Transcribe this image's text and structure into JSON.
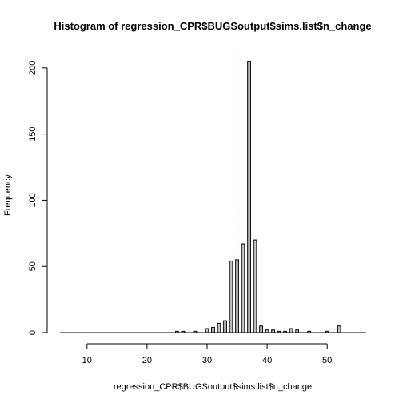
{
  "chart_data": {
    "type": "bar",
    "title": "Histogram of regression_CPR$BUGSoutput$sims.list$n_change",
    "xlabel": "regression_CPR$BUGSoutput$sims.list$n_change",
    "ylabel": "Frequency",
    "xlim": [
      5.5,
      56.5
    ],
    "ylim": [
      0,
      215
    ],
    "x_ticks": [
      10,
      20,
      30,
      40,
      50
    ],
    "y_ticks": [
      0,
      50,
      100,
      150,
      200
    ],
    "grid": false,
    "bar_width": 0.5,
    "bar_color": "#bebebe",
    "bars": [
      {
        "x": 25,
        "y": 1
      },
      {
        "x": 26,
        "y": 1
      },
      {
        "x": 28,
        "y": 1
      },
      {
        "x": 30,
        "y": 3
      },
      {
        "x": 31,
        "y": 4
      },
      {
        "x": 32,
        "y": 7
      },
      {
        "x": 33,
        "y": 9
      },
      {
        "x": 34,
        "y": 54
      },
      {
        "x": 35,
        "y": 55
      },
      {
        "x": 36,
        "y": 67
      },
      {
        "x": 37,
        "y": 205
      },
      {
        "x": 38,
        "y": 70
      },
      {
        "x": 39,
        "y": 5
      },
      {
        "x": 40,
        "y": 2
      },
      {
        "x": 41,
        "y": 2
      },
      {
        "x": 42,
        "y": 1
      },
      {
        "x": 43,
        "y": 1
      },
      {
        "x": 44,
        "y": 3
      },
      {
        "x": 45,
        "y": 2
      },
      {
        "x": 47,
        "y": 1
      },
      {
        "x": 50,
        "y": 1
      },
      {
        "x": 52,
        "y": 5
      }
    ],
    "vline": {
      "x": 35,
      "color": "#cc0000",
      "style": "dotted"
    }
  }
}
